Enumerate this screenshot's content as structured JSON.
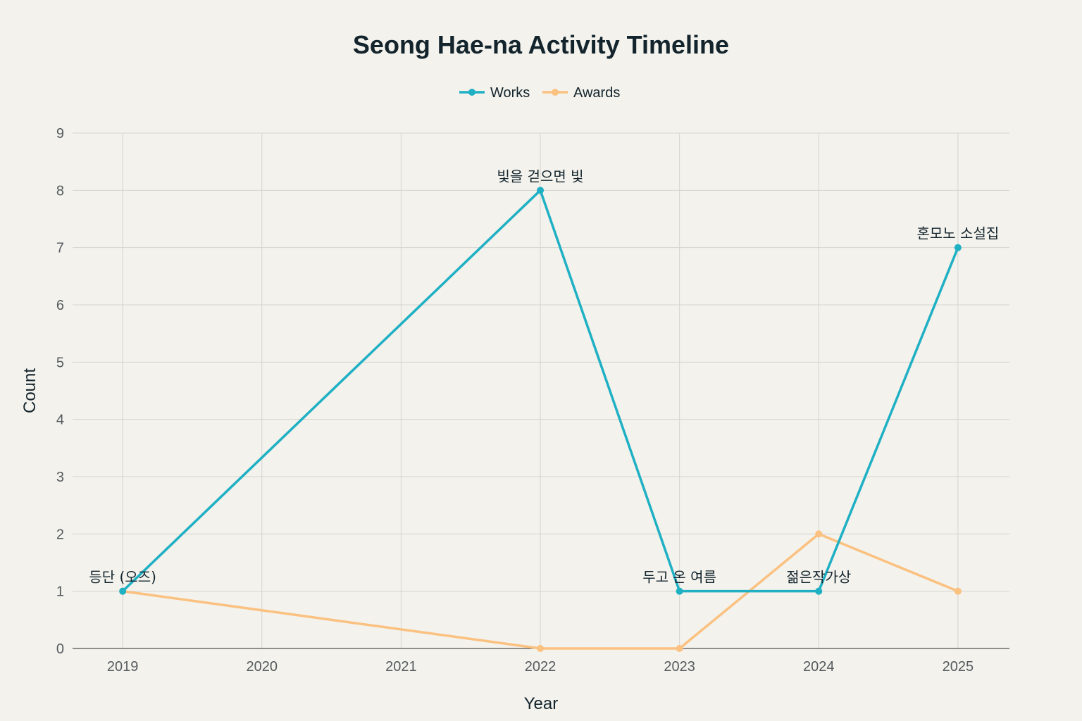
{
  "chart_data": {
    "type": "line",
    "title": "Seong Hae-na Activity Timeline",
    "xlabel": "Year",
    "ylabel": "Count",
    "x": [
      2019,
      2022,
      2023,
      2024,
      2025
    ],
    "x_ticks": [
      "2019",
      "2020",
      "2021",
      "2022",
      "2023",
      "2024",
      "2025"
    ],
    "xlim": [
      2018.64,
      2025.37
    ],
    "ylim": [
      0,
      9
    ],
    "y_ticks": [
      "0",
      "1",
      "2",
      "3",
      "4",
      "5",
      "6",
      "7",
      "8",
      "9"
    ],
    "grid": true,
    "legend_placement": "top-center",
    "series": [
      {
        "name": "Works",
        "color": "#1fb0c4",
        "values": [
          1,
          8,
          1,
          1,
          7
        ]
      },
      {
        "name": "Awards",
        "color": "#fbc180",
        "values": [
          1,
          0,
          0,
          2,
          1
        ]
      }
    ],
    "annotations": [
      {
        "x": 2019,
        "y": 1,
        "text": "등단 (오즈)"
      },
      {
        "x": 2022,
        "y": 8,
        "text": "빛을 걷으면 빛"
      },
      {
        "x": 2023,
        "y": 1,
        "text": "두고 온 여름"
      },
      {
        "x": 2024,
        "y": 1,
        "text": "젊은작가상"
      },
      {
        "x": 2025,
        "y": 7,
        "text": "혼모노 소설집"
      }
    ]
  }
}
